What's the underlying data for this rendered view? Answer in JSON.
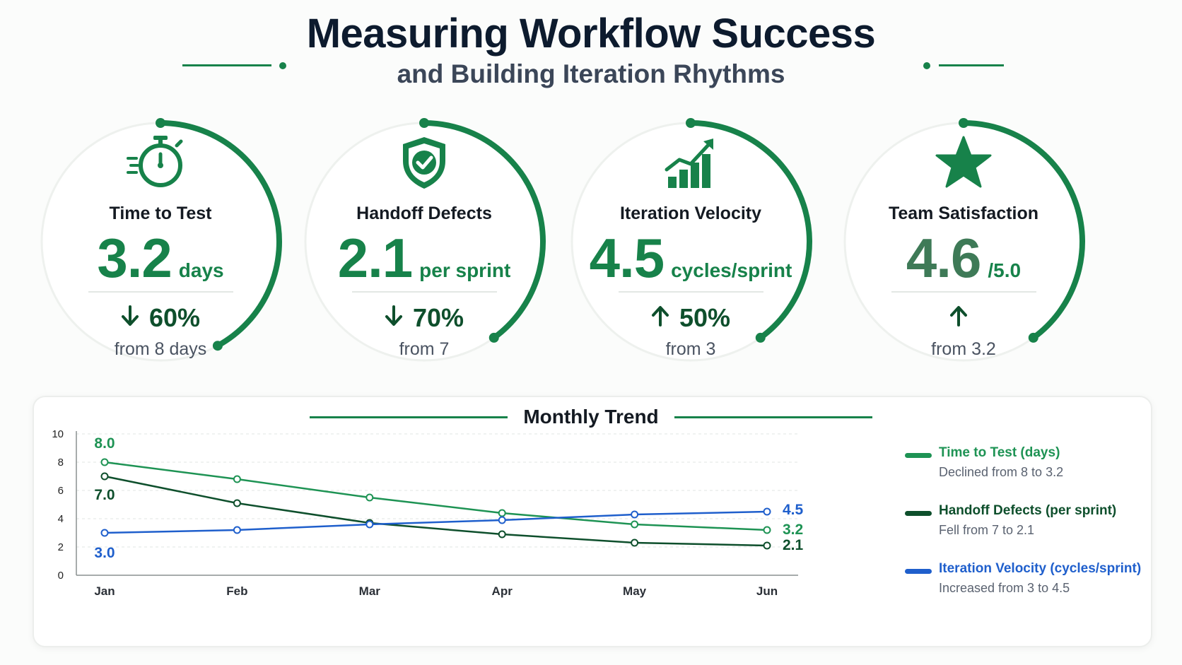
{
  "header": {
    "title": "Measuring Workflow Success",
    "subtitle": "and Building Iteration Rhythms"
  },
  "colors": {
    "green": "#17824a",
    "dark_green": "#0e4f2c",
    "blue": "#1f5fcc",
    "ring_track": "#eef1ee"
  },
  "kpis": [
    {
      "label": "Time to Test",
      "value": "3.2",
      "unit": "days",
      "change": "60%",
      "direction": "down",
      "from": "from 8 days",
      "icon": "stopwatch-icon",
      "ring_fill": 0.42
    },
    {
      "label": "Handoff Defects",
      "value": "2.1",
      "unit": "per sprint",
      "change": "70%",
      "direction": "down",
      "from": "from 7",
      "icon": "shield-check-icon",
      "ring_fill": 0.4
    },
    {
      "label": "Iteration Velocity",
      "value": "4.5",
      "unit": "cycles/sprint",
      "change": "50%",
      "direction": "up",
      "from": "from 3",
      "icon": "growth-bars-icon",
      "ring_fill": 0.4
    },
    {
      "label": "Team Satisfaction",
      "value": "4.6",
      "unit": "/5.0",
      "change": "",
      "direction": "up",
      "from": "from 3.2",
      "icon": "star-icon",
      "ring_fill": 0.4
    }
  ],
  "chart_data": {
    "type": "line",
    "title": "Monthly Trend",
    "categories": [
      "Jan",
      "Feb",
      "Mar",
      "Apr",
      "May",
      "Jun"
    ],
    "ylim": [
      0,
      10
    ],
    "yticks": [
      0,
      2,
      4,
      6,
      8,
      10
    ],
    "grid": true,
    "legend_position": "right",
    "series": [
      {
        "name": "Time to Test (days)",
        "description": "Declined from 8 to 3.2",
        "color": "#1e9354",
        "values": [
          8.0,
          6.8,
          5.5,
          4.4,
          3.6,
          3.2
        ],
        "labels": {
          "first": "8.0",
          "last": "3.2"
        }
      },
      {
        "name": "Handoff Defects (per sprint)",
        "description": "Fell from 7 to 2.1",
        "color": "#0e4f2c",
        "values": [
          7.0,
          5.1,
          3.7,
          2.9,
          2.3,
          2.1
        ],
        "labels": {
          "first": "7.0",
          "last": "2.1"
        }
      },
      {
        "name": "Iteration Velocity (cycles/sprint)",
        "description": "Increased from 3 to 4.5",
        "color": "#1f5fcc",
        "values": [
          3.0,
          3.2,
          3.6,
          3.9,
          4.3,
          4.5
        ],
        "labels": {
          "first": "3.0",
          "last": "4.5"
        }
      }
    ]
  }
}
